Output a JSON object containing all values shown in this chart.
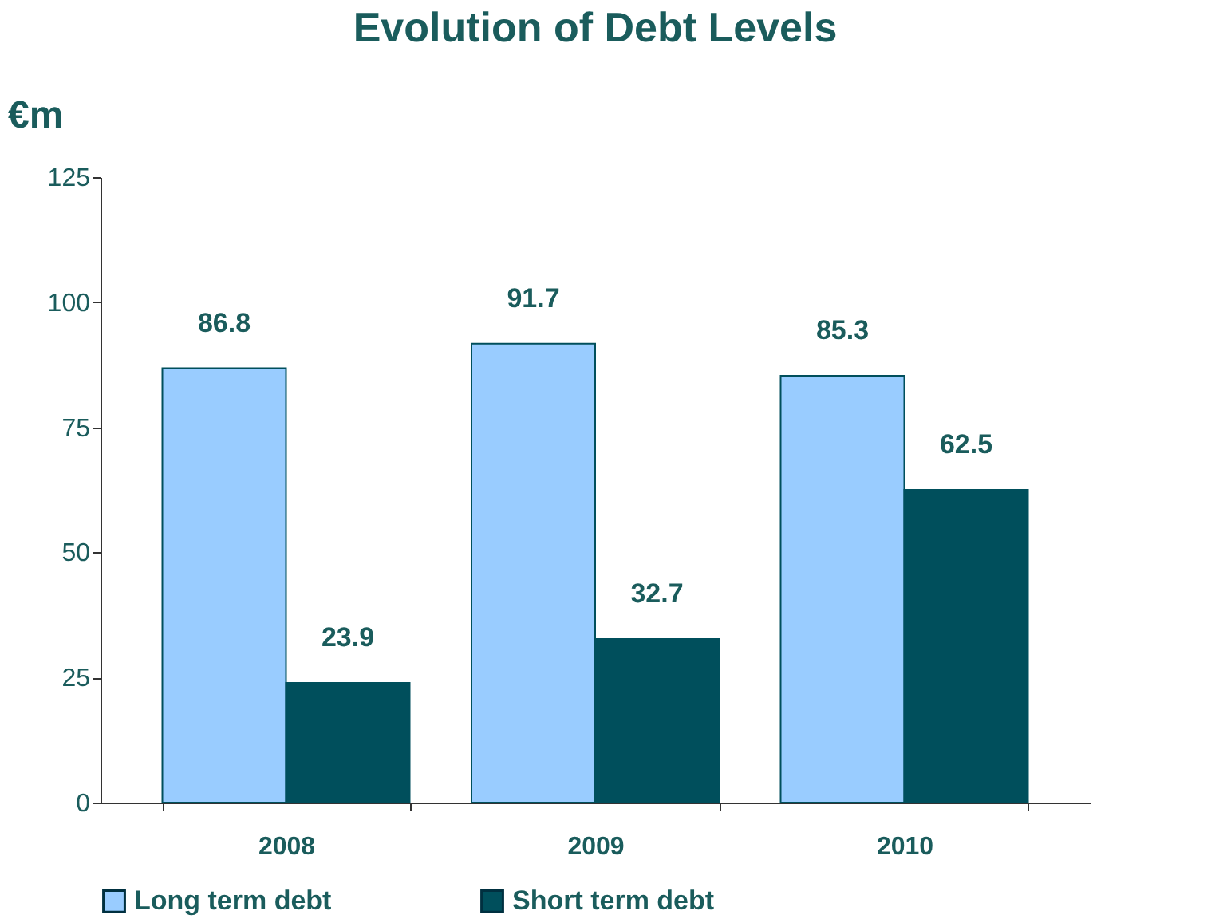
{
  "chart_data": {
    "type": "bar",
    "title": "Evolution of Debt Levels",
    "ylabel": "€m",
    "categories": [
      "2008",
      "2009",
      "2010"
    ],
    "series": [
      {
        "name": "Long term debt",
        "color": "#99ccff",
        "values": [
          86.8,
          91.7,
          85.3
        ]
      },
      {
        "name": "Short term debt",
        "color": "#004f5c",
        "values": [
          23.9,
          32.7,
          62.5
        ]
      }
    ],
    "ylim": [
      0,
      125
    ],
    "yticks": [
      0,
      25,
      50,
      75,
      100,
      125
    ],
    "grid": false,
    "legend": "bottom",
    "data_labels": true
  }
}
